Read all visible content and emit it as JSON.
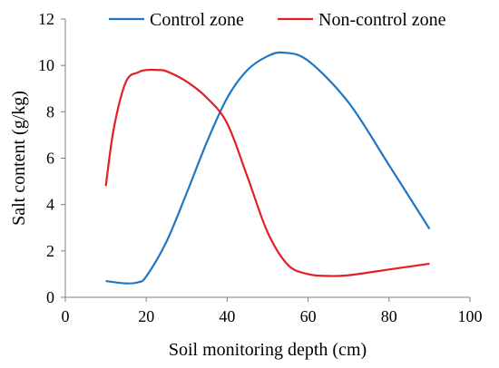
{
  "chart_data": {
    "type": "line",
    "xlabel": "Soil monitoring depth (cm)",
    "ylabel": "Salt content (g/kg)",
    "xlim": [
      0,
      100
    ],
    "ylim": [
      0,
      12
    ],
    "xticks": [
      0,
      20,
      40,
      60,
      80,
      100
    ],
    "yticks": [
      0,
      2,
      4,
      6,
      8,
      10,
      12
    ],
    "grid": false,
    "legend_position": "top",
    "series": [
      {
        "name": "Control zone",
        "color": "#1f77c4",
        "x": [
          10,
          15,
          18,
          20,
          25,
          30,
          35,
          40,
          45,
          50,
          54,
          60,
          70,
          80,
          90
        ],
        "y": [
          0.7,
          0.6,
          0.65,
          0.9,
          2.4,
          4.5,
          6.7,
          8.6,
          9.8,
          10.4,
          10.55,
          10.2,
          8.4,
          5.7,
          2.95
        ]
      },
      {
        "name": "Non-control zone",
        "color": "#e21f26",
        "x": [
          10,
          12,
          15,
          18,
          20,
          23,
          25,
          30,
          35,
          40,
          45,
          50,
          55,
          60,
          65,
          70,
          80,
          90
        ],
        "y": [
          4.8,
          7.3,
          9.3,
          9.7,
          9.8,
          9.8,
          9.75,
          9.3,
          8.6,
          7.5,
          5.2,
          2.8,
          1.4,
          1.0,
          0.92,
          0.95,
          1.2,
          1.45
        ]
      }
    ]
  }
}
